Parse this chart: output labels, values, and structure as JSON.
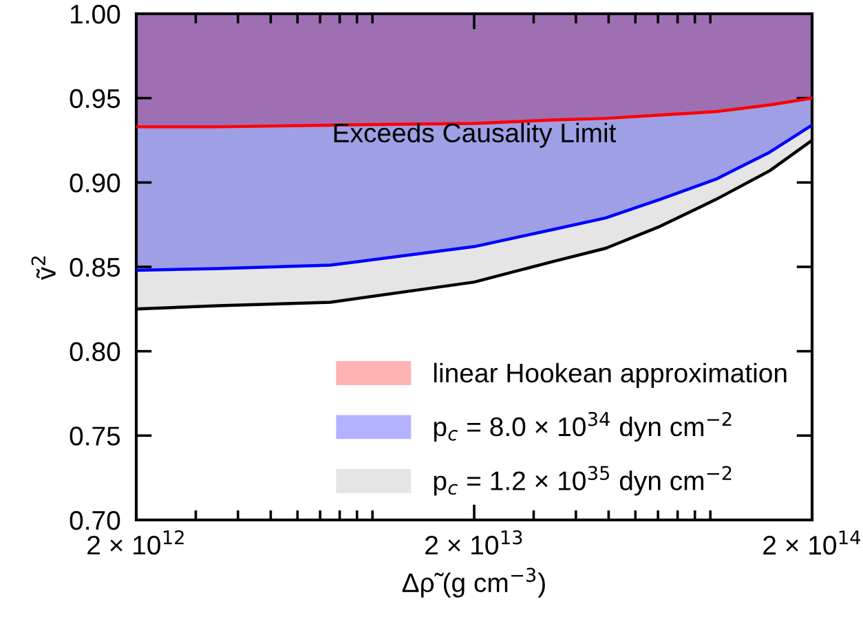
{
  "chart_data": {
    "type": "line",
    "xlabel": "Δρ̃ (g cm$^{−3}$)",
    "ylabel": "ṽ$^{2}$",
    "x": [
      2000000000000.0,
      3500000000000.0,
      7500000000000.0,
      20000000000000.0,
      34000000000000.0,
      49000000000000.0,
      71000000000000.0,
      104000000000000.0,
      150000000000000.0,
      200000000000000.0
    ],
    "series": [
      {
        "name": "linear Hookean approximation",
        "color": "#ff0000",
        "values": [
          0.933,
          0.933,
          0.934,
          0.935,
          0.937,
          0.938,
          0.94,
          0.942,
          0.946,
          0.95
        ],
        "lower": [
          0.933,
          0.933,
          0.934,
          0.935,
          0.937,
          0.938,
          0.94,
          0.942,
          0.946,
          0.95
        ],
        "upper": [
          1,
          1,
          1,
          1,
          1,
          1,
          1,
          1,
          1,
          1
        ]
      },
      {
        "name": "p$_{c}$ = 8.0 × 10$^{34}$ dyn cm$^{−2}$",
        "color": "#0000ff",
        "values": [
          0.848,
          0.849,
          0.851,
          0.862,
          0.872,
          0.879,
          0.89,
          0.902,
          0.918,
          0.934
        ],
        "lower": [
          0.848,
          0.849,
          0.851,
          0.862,
          0.872,
          0.879,
          0.89,
          0.902,
          0.918,
          0.934
        ],
        "upper": [
          1,
          1,
          1,
          1,
          1,
          1,
          1,
          1,
          1,
          1
        ]
      },
      {
        "name": "p$_{c}$ = 1.2 × 10$^{35}$ dyn cm$^{−2}$",
        "color": "#000000",
        "values": [
          0.825,
          0.827,
          0.829,
          0.841,
          0.853,
          0.861,
          0.874,
          0.89,
          0.907,
          0.925
        ],
        "lower": [
          0.825,
          0.827,
          0.829,
          0.841,
          0.853,
          0.861,
          0.874,
          0.89,
          0.907,
          0.925
        ],
        "upper": [
          1,
          1,
          1,
          1,
          1,
          1,
          1,
          1,
          1,
          1
        ]
      }
    ],
    "log": "x",
    "xlim": [
      2000000000000.0,
      200000000000000.0
    ],
    "xticks": [
      {
        "value": 2000000000000.0,
        "label": "2 × 10$^{12}$"
      },
      {
        "value": 20000000000000.0,
        "label": "2 × 10$^{13}$"
      },
      {
        "value": 200000000000000.0,
        "label": "2 × 10$^{14}$"
      }
    ],
    "ylim": [
      0.7,
      1.0
    ],
    "yticks": [
      {
        "value": 0.7,
        "label": "0.70"
      },
      {
        "value": 0.75,
        "label": "0.75"
      },
      {
        "value": 0.8,
        "label": "0.80"
      },
      {
        "value": 0.85,
        "label": "0.85"
      },
      {
        "value": 0.9,
        "label": "0.90"
      },
      {
        "value": 0.95,
        "label": "0.95"
      },
      {
        "value": 1.0,
        "label": "1.00"
      }
    ],
    "annotations": [
      "Exceeds Causality Limit"
    ],
    "legend": "bottom right",
    "grid": false
  }
}
